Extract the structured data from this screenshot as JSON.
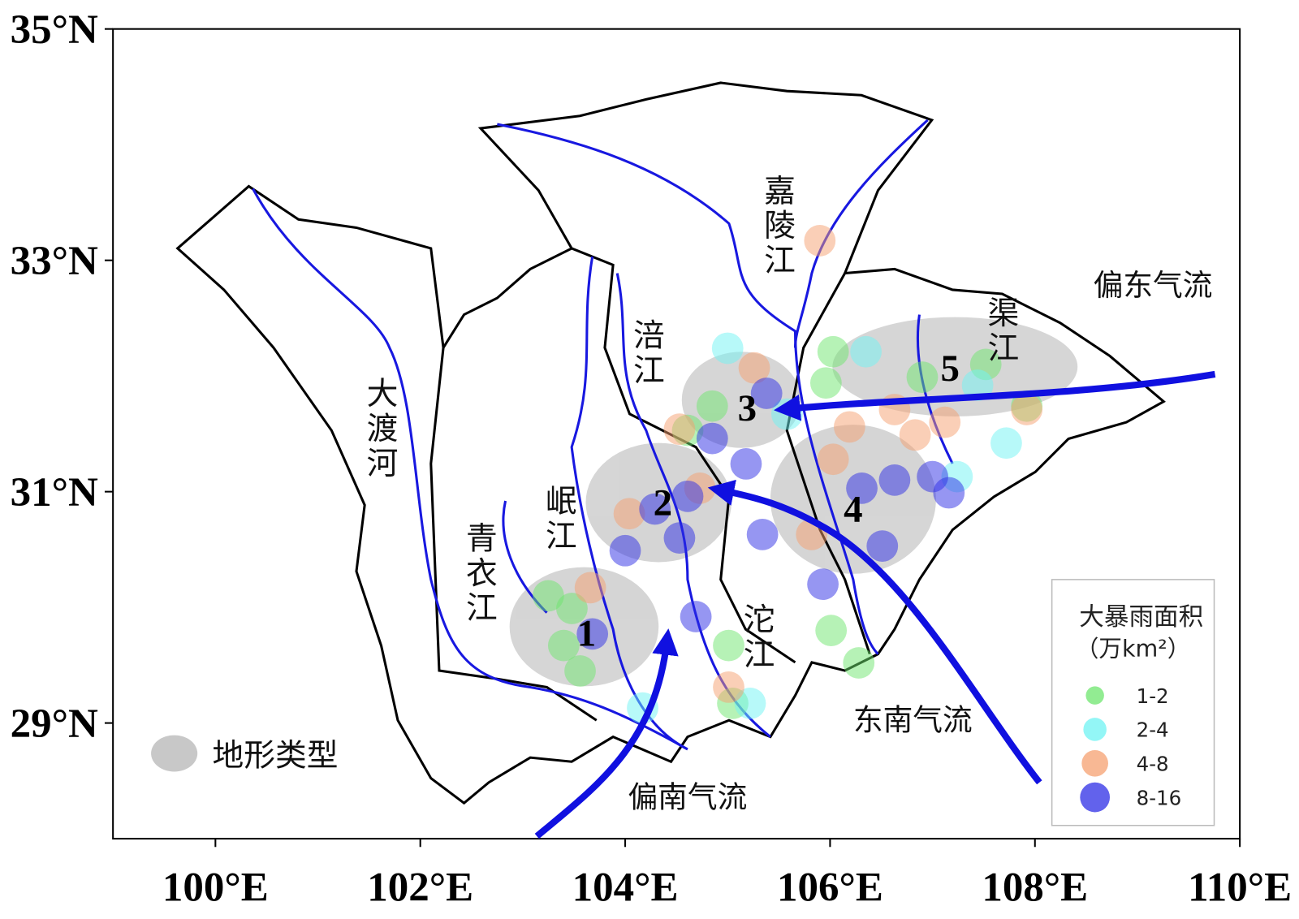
{
  "axes": {
    "xlim": [
      99,
      110
    ],
    "ylim": [
      28,
      35
    ],
    "xticks": [
      {
        "value": 100,
        "label": "100°E"
      },
      {
        "value": 102,
        "label": "102°E"
      },
      {
        "value": 104,
        "label": "104°E"
      },
      {
        "value": 106,
        "label": "106°E"
      },
      {
        "value": 108,
        "label": "108°E"
      },
      {
        "value": 110,
        "label": "110°E"
      }
    ],
    "yticks": [
      {
        "value": 29,
        "label": "29°N"
      },
      {
        "value": 31,
        "label": "31°N"
      },
      {
        "value": 33,
        "label": "33°N"
      },
      {
        "value": 35,
        "label": "35°N"
      }
    ]
  },
  "rivers": [
    {
      "label": "大渡河"
    },
    {
      "label": "青衣江"
    },
    {
      "label": "岷江"
    },
    {
      "label": "涪江"
    },
    {
      "label": "沱江"
    },
    {
      "label": "嘉陵江"
    },
    {
      "label": "渠江"
    }
  ],
  "regions": [
    {
      "label": "1"
    },
    {
      "label": "2"
    },
    {
      "label": "3"
    },
    {
      "label": "4"
    },
    {
      "label": "5"
    }
  ],
  "flows": [
    {
      "label": "偏南气流"
    },
    {
      "label": "东南气流"
    },
    {
      "label": "偏东气流"
    }
  ],
  "terrain_legend": {
    "label": "地形类型"
  },
  "legend": {
    "title": "大暴雨面积",
    "unit": "（万km²）",
    "classes": [
      {
        "label": "1-2",
        "color": "#6ee66e",
        "points": [
          [
            103.25,
            30.1
          ],
          [
            103.48,
            29.99
          ],
          [
            103.4,
            29.67
          ],
          [
            103.56,
            29.45
          ],
          [
            106.03,
            32.21
          ],
          [
            105.96,
            31.94
          ],
          [
            106.01,
            29.8
          ],
          [
            106.28,
            29.52
          ],
          [
            106.9,
            31.99
          ],
          [
            107.92,
            31.74
          ],
          [
            105.01,
            29.67
          ],
          [
            105.05,
            29.17
          ],
          [
            104.85,
            31.74
          ],
          [
            104.61,
            31.53
          ],
          [
            107.52,
            32.1
          ]
        ]
      },
      {
        "label": "2-4",
        "color": "#6ff3f3",
        "points": [
          [
            105.0,
            32.24
          ],
          [
            105.22,
            29.17
          ],
          [
            104.17,
            29.13
          ],
          [
            107.72,
            31.42
          ],
          [
            106.35,
            32.21
          ],
          [
            107.24,
            31.13
          ],
          [
            105.58,
            31.67
          ],
          [
            107.44,
            31.92
          ]
        ]
      },
      {
        "label": "4-8",
        "color": "#f5a070",
        "points": [
          [
            105.9,
            33.17
          ],
          [
            103.66,
            30.17
          ],
          [
            105.01,
            29.31
          ],
          [
            104.53,
            31.54
          ],
          [
            105.26,
            32.07
          ],
          [
            106.19,
            31.56
          ],
          [
            106.63,
            31.71
          ],
          [
            107.12,
            31.6
          ],
          [
            105.82,
            30.63
          ],
          [
            106.03,
            31.28
          ],
          [
            106.83,
            31.49
          ],
          [
            107.92,
            31.71
          ],
          [
            104.04,
            30.81
          ],
          [
            104.73,
            31.03
          ]
        ]
      },
      {
        "label": "8-16",
        "color": "#2e2ee6",
        "points": [
          [
            104.69,
            29.92
          ],
          [
            104.0,
            30.49
          ],
          [
            105.34,
            30.63
          ],
          [
            105.93,
            30.2
          ],
          [
            107.0,
            31.13
          ],
          [
            107.16,
            30.99
          ],
          [
            106.51,
            30.53
          ],
          [
            106.31,
            31.03
          ],
          [
            104.29,
            30.85
          ],
          [
            104.53,
            30.6
          ],
          [
            105.18,
            31.24
          ],
          [
            104.85,
            31.46
          ],
          [
            106.63,
            31.1
          ],
          [
            105.38,
            31.85
          ],
          [
            104.61,
            30.96
          ],
          [
            103.68,
            29.77
          ]
        ]
      }
    ]
  }
}
